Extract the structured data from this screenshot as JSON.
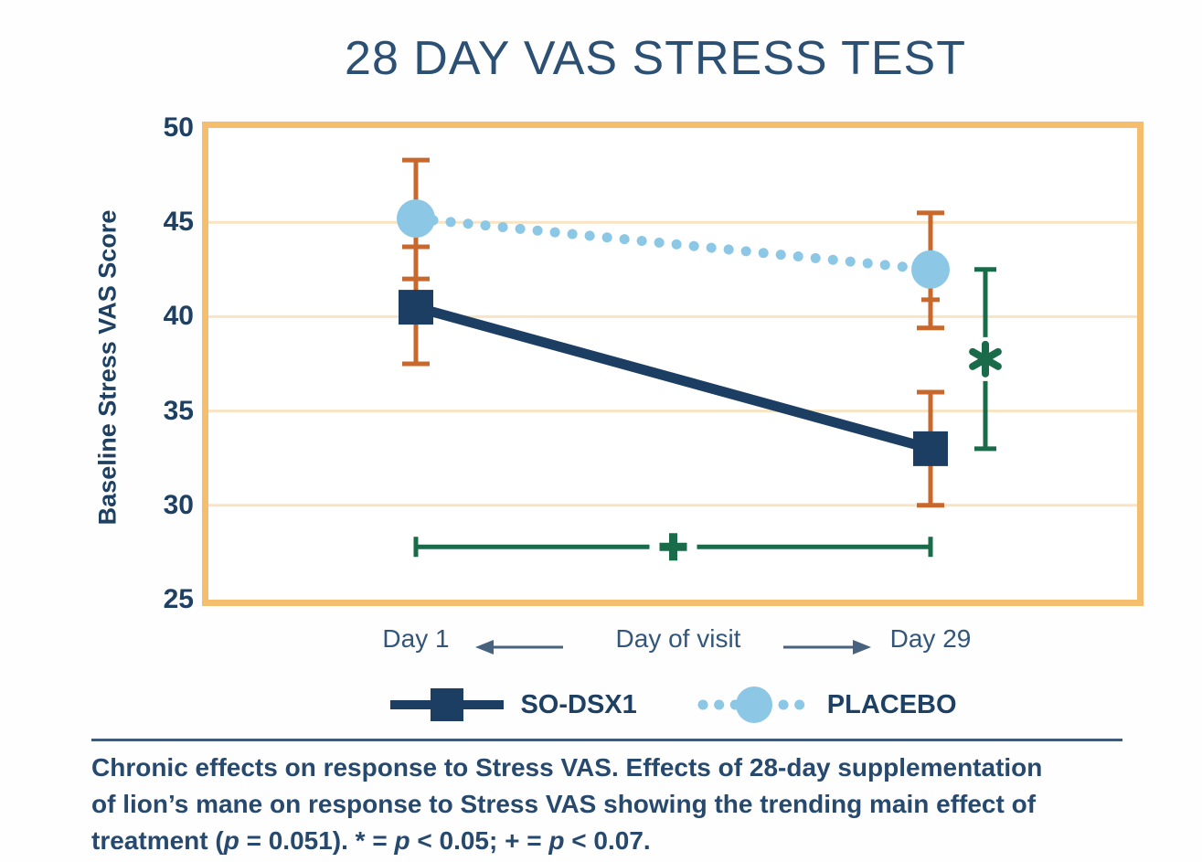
{
  "chart_data": {
    "type": "line",
    "title": "28 DAY VAS STRESS TEST",
    "ylabel": "Baseline Stress VAS Score",
    "xlabel": "Day of visit",
    "x_categories": [
      "Day 1",
      "Day 29"
    ],
    "ylim": [
      25,
      50
    ],
    "ytick_labels": [
      "50",
      "45",
      "40",
      "35",
      "30",
      "25"
    ],
    "grid": "horizontal",
    "legend_position": "bottom",
    "frame_color": "#F5BD6E",
    "grid_color": "#F8E4C3",
    "error_bar_color": "#C8682D",
    "text_color": "#1E4062",
    "series": [
      {
        "name": "SO-DSX1",
        "line_style": "solid",
        "marker": "square",
        "color": "#1C3E63",
        "values": [
          40.5,
          33.0
        ],
        "error_low": [
          37.5,
          30.0
        ],
        "error_high": [
          43.7,
          36.0
        ],
        "inner_ticks": [
          null,
          null
        ]
      },
      {
        "name": "PLACEBO",
        "line_style": "dotted",
        "marker": "circle",
        "color": "#8CC7E6",
        "values": [
          45.2,
          42.5
        ],
        "error_low": [
          42.0,
          39.4
        ],
        "error_high": [
          48.3,
          45.5
        ],
        "inner_ticks": [
          null,
          40.9
        ]
      }
    ],
    "annotations": [
      {
        "type": "vertical-bracket",
        "x_category": "Day 29",
        "from": 42.5,
        "to": 33.0,
        "label": "*",
        "color": "#1A6B4A"
      },
      {
        "type": "horizontal-bracket",
        "from_category": "Day 1",
        "to_category": "Day 29",
        "y": 27.8,
        "label": "+",
        "color": "#1A6B4A"
      }
    ]
  },
  "caption": {
    "segments": [
      {
        "t": "Chronic effects on response to Stress VAS. Effects of 28-day supplementation"
      },
      {
        "br": true
      },
      {
        "t": "of lion’s mane on response to Stress VAS showing the trending main effect of"
      },
      {
        "br": true
      },
      {
        "t": "treatment ("
      },
      {
        "t": "p",
        "i": true
      },
      {
        "t": " = 0.051). * = "
      },
      {
        "t": "p",
        "i": true
      },
      {
        "t": " < 0.05; + = "
      },
      {
        "t": "p",
        "i": true
      },
      {
        "t": " < 0.07."
      }
    ]
  }
}
